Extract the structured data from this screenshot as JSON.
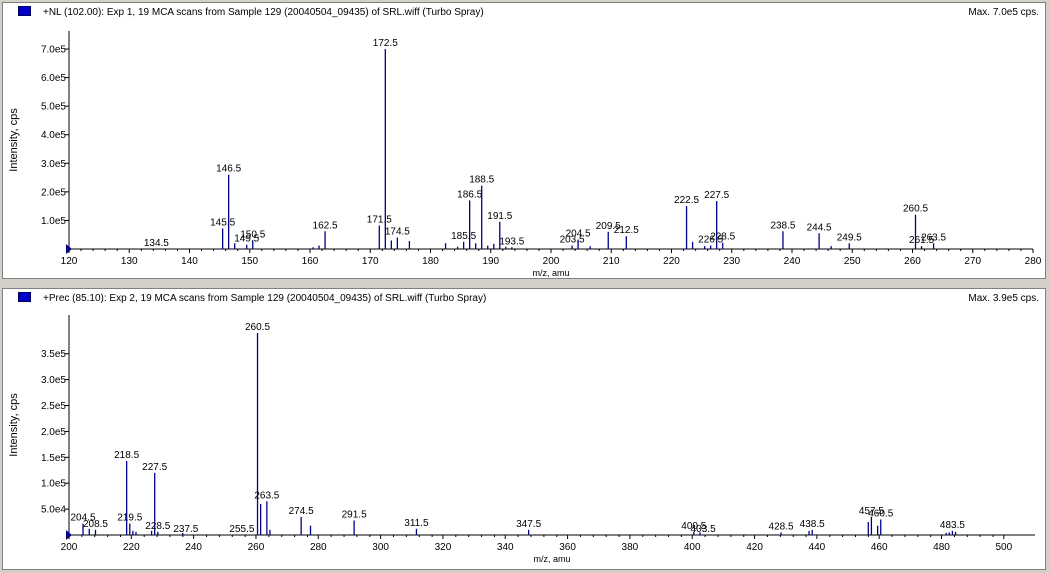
{
  "chart_data": [
    {
      "type": "bar",
      "title": "+NL (102.00): Exp 1, 19 MCA scans from Sample 129 (20040504_09435) of SRL.wiff (Turbo Spray)",
      "max_label": "Max. 7.0e5 cps.",
      "xlabel": "m/z, amu",
      "ylabel": "Intensity, cps",
      "xlim": [
        120,
        280
      ],
      "ylim": [
        0,
        700000
      ],
      "x_ticks": [
        "120",
        "130",
        "140",
        "150",
        "160",
        "170",
        "180",
        "190",
        "200",
        "210",
        "220",
        "230",
        "240",
        "250",
        "260",
        "270",
        "280"
      ],
      "y_ticks": [
        "1.0e5",
        "2.0e5",
        "3.0e5",
        "4.0e5",
        "5.0e5",
        "6.0e5",
        "7.0e5"
      ],
      "color": "#00008b",
      "peaks": [
        {
          "mz": 145.5,
          "intensity": 72000
        },
        {
          "mz": 146.5,
          "intensity": 260000
        },
        {
          "mz": 147.5,
          "intensity": 20000
        },
        {
          "mz": 149.5,
          "intensity": 15000
        },
        {
          "mz": 150.5,
          "intensity": 30000
        },
        {
          "mz": 160.5,
          "intensity": 6000
        },
        {
          "mz": 161.5,
          "intensity": 12000
        },
        {
          "mz": 162.5,
          "intensity": 62000
        },
        {
          "mz": 171.5,
          "intensity": 82000
        },
        {
          "mz": 172.5,
          "intensity": 700000
        },
        {
          "mz": 173.5,
          "intensity": 30000
        },
        {
          "mz": 174.5,
          "intensity": 40000
        },
        {
          "mz": 176.5,
          "intensity": 28000
        },
        {
          "mz": 182.5,
          "intensity": 20000
        },
        {
          "mz": 184.5,
          "intensity": 8000
        },
        {
          "mz": 185.5,
          "intensity": 25000
        },
        {
          "mz": 186.5,
          "intensity": 170000
        },
        {
          "mz": 187.5,
          "intensity": 20000
        },
        {
          "mz": 188.5,
          "intensity": 222000
        },
        {
          "mz": 189.5,
          "intensity": 12000
        },
        {
          "mz": 190.5,
          "intensity": 18000
        },
        {
          "mz": 191.5,
          "intensity": 95000
        },
        {
          "mz": 192.5,
          "intensity": 8000
        },
        {
          "mz": 193.5,
          "intensity": 6000
        },
        {
          "mz": 203.5,
          "intensity": 12000
        },
        {
          "mz": 204.5,
          "intensity": 33000
        },
        {
          "mz": 206.5,
          "intensity": 10000
        },
        {
          "mz": 209.5,
          "intensity": 60000
        },
        {
          "mz": 212.5,
          "intensity": 45000
        },
        {
          "mz": 222.5,
          "intensity": 150000
        },
        {
          "mz": 223.5,
          "intensity": 25000
        },
        {
          "mz": 225.5,
          "intensity": 10000
        },
        {
          "mz": 226.5,
          "intensity": 12000
        },
        {
          "mz": 227.5,
          "intensity": 168000
        },
        {
          "mz": 228.5,
          "intensity": 22000
        },
        {
          "mz": 238.5,
          "intensity": 62000
        },
        {
          "mz": 244.5,
          "intensity": 55000
        },
        {
          "mz": 246.5,
          "intensity": 10000
        },
        {
          "mz": 249.5,
          "intensity": 20000
        },
        {
          "mz": 260.5,
          "intensity": 120000
        },
        {
          "mz": 261.5,
          "intensity": 10000
        },
        {
          "mz": 263.5,
          "intensity": 20000
        }
      ],
      "labels": [
        {
          "text": "134.5",
          "mz": 134.5,
          "intensity": 0
        },
        {
          "text": "145.5",
          "mz": 145.5,
          "intensity": 72000
        },
        {
          "text": "146.5",
          "mz": 146.5,
          "intensity": 260000
        },
        {
          "text": "150.5",
          "mz": 150.5,
          "intensity": 30000
        },
        {
          "text": "149.5",
          "mz": 149.5,
          "intensity": 15000
        },
        {
          "text": "162.5",
          "mz": 162.5,
          "intensity": 62000
        },
        {
          "text": "171.5",
          "mz": 171.5,
          "intensity": 82000
        },
        {
          "text": "172.5",
          "mz": 172.5,
          "intensity": 700000
        },
        {
          "text": "174.5",
          "mz": 174.5,
          "intensity": 40000
        },
        {
          "text": "185.5",
          "mz": 185.5,
          "intensity": 25000
        },
        {
          "text": "186.5",
          "mz": 186.5,
          "intensity": 170000
        },
        {
          "text": "188.5",
          "mz": 188.5,
          "intensity": 222000
        },
        {
          "text": "191.5",
          "mz": 191.5,
          "intensity": 95000
        },
        {
          "text": "193.5",
          "mz": 193.5,
          "intensity": 6000
        },
        {
          "text": "203.5",
          "mz": 203.5,
          "intensity": 12000
        },
        {
          "text": "204.5",
          "mz": 204.5,
          "intensity": 33000
        },
        {
          "text": "209.5",
          "mz": 209.5,
          "intensity": 60000
        },
        {
          "text": "212.5",
          "mz": 212.5,
          "intensity": 45000
        },
        {
          "text": "222.5",
          "mz": 222.5,
          "intensity": 150000
        },
        {
          "text": "226.5",
          "mz": 226.5,
          "intensity": 12000
        },
        {
          "text": "227.5",
          "mz": 227.5,
          "intensity": 168000
        },
        {
          "text": "228.5",
          "mz": 228.5,
          "intensity": 22000
        },
        {
          "text": "238.5",
          "mz": 238.5,
          "intensity": 62000
        },
        {
          "text": "244.5",
          "mz": 244.5,
          "intensity": 55000
        },
        {
          "text": "249.5",
          "mz": 249.5,
          "intensity": 20000
        },
        {
          "text": "260.5",
          "mz": 260.5,
          "intensity": 120000
        },
        {
          "text": "261.5",
          "mz": 261.5,
          "intensity": 10000
        },
        {
          "text": "263.5",
          "mz": 263.5,
          "intensity": 20000
        }
      ]
    },
    {
      "type": "bar",
      "title": "+Prec (85.10): Exp 2, 19 MCA scans from Sample 129 (20040504_09435) of SRL.wiff (Turbo Spray)",
      "max_label": "Max. 3.9e5 cps.",
      "xlabel": "m/z, amu",
      "ylabel": "Intensity, cps",
      "xlim": [
        200,
        510
      ],
      "ylim": [
        0,
        390000
      ],
      "x_ticks": [
        "200",
        "220",
        "240",
        "260",
        "280",
        "300",
        "320",
        "340",
        "360",
        "380",
        "400",
        "420",
        "440",
        "460",
        "480",
        "500"
      ],
      "y_ticks": [
        "5.0e4",
        "1.0e5",
        "1.5e5",
        "2.0e5",
        "2.5e5",
        "3.0e5",
        "3.5e5"
      ],
      "color": "#00008b",
      "peaks": [
        {
          "mz": 204.5,
          "intensity": 22000
        },
        {
          "mz": 206.5,
          "intensity": 12000
        },
        {
          "mz": 208.5,
          "intensity": 10000
        },
        {
          "mz": 218.5,
          "intensity": 143000
        },
        {
          "mz": 219.5,
          "intensity": 22000
        },
        {
          "mz": 220.5,
          "intensity": 8000
        },
        {
          "mz": 221.5,
          "intensity": 6000
        },
        {
          "mz": 226.5,
          "intensity": 8000
        },
        {
          "mz": 227.5,
          "intensity": 120000
        },
        {
          "mz": 228.5,
          "intensity": 6000
        },
        {
          "mz": 236.5,
          "intensity": 4000
        },
        {
          "mz": 260.5,
          "intensity": 390000
        },
        {
          "mz": 261.5,
          "intensity": 60000
        },
        {
          "mz": 263.5,
          "intensity": 65000
        },
        {
          "mz": 264.5,
          "intensity": 10000
        },
        {
          "mz": 274.5,
          "intensity": 35000
        },
        {
          "mz": 277.5,
          "intensity": 18000
        },
        {
          "mz": 291.5,
          "intensity": 28000
        },
        {
          "mz": 311.5,
          "intensity": 12000
        },
        {
          "mz": 347.5,
          "intensity": 10000
        },
        {
          "mz": 400.5,
          "intensity": 6000
        },
        {
          "mz": 402.5,
          "intensity": 5000
        },
        {
          "mz": 428.5,
          "intensity": 5000
        },
        {
          "mz": 437.5,
          "intensity": 8000
        },
        {
          "mz": 438.5,
          "intensity": 10000
        },
        {
          "mz": 456.5,
          "intensity": 25000
        },
        {
          "mz": 457.5,
          "intensity": 35000
        },
        {
          "mz": 459.5,
          "intensity": 18000
        },
        {
          "mz": 460.5,
          "intensity": 30000
        },
        {
          "mz": 481.5,
          "intensity": 4000
        },
        {
          "mz": 482.5,
          "intensity": 5000
        },
        {
          "mz": 483.5,
          "intensity": 8000
        },
        {
          "mz": 484.5,
          "intensity": 6000
        }
      ],
      "labels": [
        {
          "text": "204.5",
          "mz": 204.5,
          "intensity": 22000
        },
        {
          "text": "208.5",
          "mz": 208.5,
          "intensity": 10000
        },
        {
          "text": "218.5",
          "mz": 218.5,
          "intensity": 143000
        },
        {
          "text": "219.5",
          "mz": 219.5,
          "intensity": 22000
        },
        {
          "text": "227.5",
          "mz": 227.5,
          "intensity": 120000
        },
        {
          "text": "228.5",
          "mz": 228.5,
          "intensity": 6000
        },
        {
          "text": "237.5",
          "mz": 237.5,
          "intensity": 0
        },
        {
          "text": "255.5",
          "mz": 255.5,
          "intensity": 0
        },
        {
          "text": "260.5",
          "mz": 260.5,
          "intensity": 390000
        },
        {
          "text": "263.5",
          "mz": 263.5,
          "intensity": 65000
        },
        {
          "text": "274.5",
          "mz": 274.5,
          "intensity": 35000
        },
        {
          "text": "291.5",
          "mz": 291.5,
          "intensity": 28000
        },
        {
          "text": "311.5",
          "mz": 311.5,
          "intensity": 12000
        },
        {
          "text": "347.5",
          "mz": 347.5,
          "intensity": 10000
        },
        {
          "text": "400.5",
          "mz": 400.5,
          "intensity": 6000
        },
        {
          "text": "403.5",
          "mz": 403.5,
          "intensity": 0
        },
        {
          "text": "428.5",
          "mz": 428.5,
          "intensity": 5000
        },
        {
          "text": "438.5",
          "mz": 438.5,
          "intensity": 10000
        },
        {
          "text": "457.5",
          "mz": 457.5,
          "intensity": 35000
        },
        {
          "text": "460.5",
          "mz": 460.5,
          "intensity": 30000
        },
        {
          "text": "483.5",
          "mz": 483.5,
          "intensity": 8000
        }
      ]
    }
  ]
}
